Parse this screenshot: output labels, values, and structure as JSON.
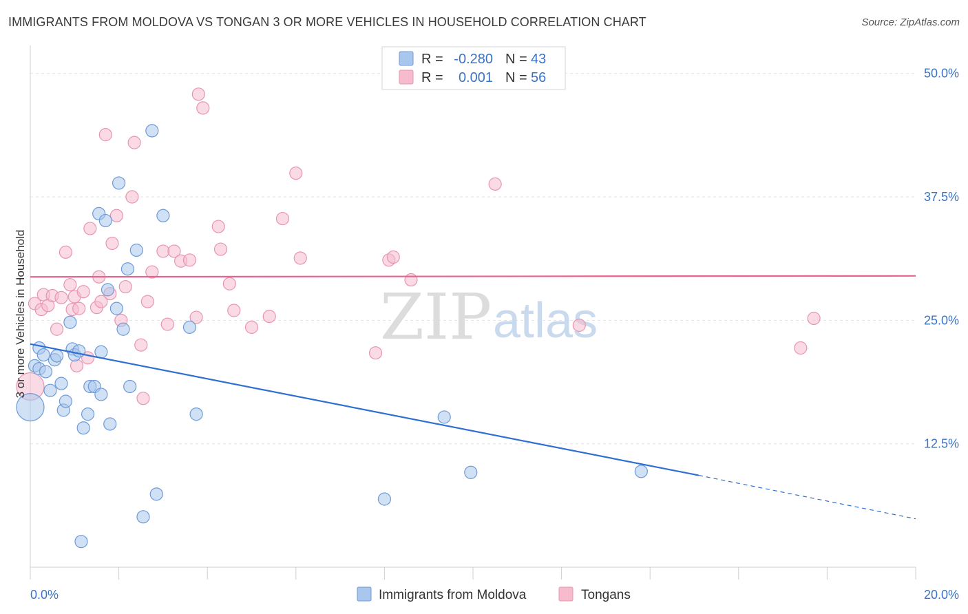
{
  "header": {
    "title": "IMMIGRANTS FROM MOLDOVA VS TONGAN 3 OR MORE VEHICLES IN HOUSEHOLD CORRELATION CHART",
    "source": "Source: ZipAtlas.com"
  },
  "watermark": {
    "zip": "ZIP",
    "atlas": "atlas"
  },
  "stats": [
    {
      "r_label": "R =",
      "r_value": "-0.280",
      "n_label": "N =",
      "n_value": "43"
    },
    {
      "r_label": "R =",
      "r_value": "0.001",
      "n_label": "N =",
      "n_value": "56"
    }
  ],
  "colors": {
    "blue_fill": "#a9c6ec",
    "blue_stroke": "#6d9ad6",
    "blue_line": "#2f6fd1",
    "pink_fill": "#f6bccd",
    "pink_stroke": "#e895b0",
    "pink_line": "#e8648c",
    "tick_text": "#3b73c4",
    "grid": "#e3e3e3"
  },
  "chart_data": {
    "type": "scatter",
    "title": "IMMIGRANTS FROM MOLDOVA VS TONGAN 3 OR MORE VEHICLES IN HOUSEHOLD CORRELATION CHART",
    "xlabel": "",
    "ylabel": "3 or more Vehicles in Household",
    "xlim": [
      0,
      20
    ],
    "ylim": [
      0,
      52
    ],
    "x_tick_labels": [
      {
        "value": 0,
        "label": "0.0%"
      },
      {
        "value": 20,
        "label": "20.0%"
      }
    ],
    "y_tick_labels": [
      {
        "value": 12.5,
        "label": "12.5%"
      },
      {
        "value": 25,
        "label": "25.0%"
      },
      {
        "value": 37.5,
        "label": "37.5%"
      },
      {
        "value": 50,
        "label": "50.0%"
      }
    ],
    "legend_position": "bottom-center",
    "series": [
      {
        "name": "Immigrants from Moldova",
        "color": "blue",
        "trend": {
          "x0": 0,
          "y0": 22.6,
          "x1": 15.1,
          "y1": 9.3,
          "dash_to_x": 20,
          "dash_to_y": 4.9
        },
        "points": [
          {
            "x": 0.0,
            "y": 16.2,
            "big": true
          },
          {
            "x": 0.1,
            "y": 20.4
          },
          {
            "x": 0.2,
            "y": 22.2
          },
          {
            "x": 0.3,
            "y": 21.5
          },
          {
            "x": 0.2,
            "y": 20.1
          },
          {
            "x": 0.35,
            "y": 19.8
          },
          {
            "x": 0.45,
            "y": 17.9
          },
          {
            "x": 0.55,
            "y": 21.0
          },
          {
            "x": 0.6,
            "y": 21.4
          },
          {
            "x": 0.7,
            "y": 18.6
          },
          {
            "x": 0.75,
            "y": 15.9
          },
          {
            "x": 0.8,
            "y": 16.8
          },
          {
            "x": 0.9,
            "y": 24.8
          },
          {
            "x": 0.95,
            "y": 22.1
          },
          {
            "x": 1.0,
            "y": 21.5
          },
          {
            "x": 1.1,
            "y": 21.9
          },
          {
            "x": 1.2,
            "y": 14.1
          },
          {
            "x": 1.3,
            "y": 15.5
          },
          {
            "x": 1.35,
            "y": 18.3
          },
          {
            "x": 1.45,
            "y": 18.3
          },
          {
            "x": 1.55,
            "y": 35.8
          },
          {
            "x": 1.6,
            "y": 17.5
          },
          {
            "x": 1.7,
            "y": 35.1
          },
          {
            "x": 1.75,
            "y": 28.1
          },
          {
            "x": 1.8,
            "y": 14.5
          },
          {
            "x": 1.95,
            "y": 26.2
          },
          {
            "x": 2.0,
            "y": 38.9
          },
          {
            "x": 2.1,
            "y": 24.1
          },
          {
            "x": 2.2,
            "y": 30.2
          },
          {
            "x": 2.25,
            "y": 18.3
          },
          {
            "x": 2.4,
            "y": 32.1
          },
          {
            "x": 2.55,
            "y": 5.1
          },
          {
            "x": 2.75,
            "y": 44.2
          },
          {
            "x": 2.85,
            "y": 7.4
          },
          {
            "x": 3.0,
            "y": 35.6
          },
          {
            "x": 3.6,
            "y": 24.3
          },
          {
            "x": 3.75,
            "y": 15.5
          },
          {
            "x": 1.15,
            "y": 2.6
          },
          {
            "x": 1.6,
            "y": 21.8
          },
          {
            "x": 8.0,
            "y": 6.9
          },
          {
            "x": 9.35,
            "y": 15.2
          },
          {
            "x": 9.95,
            "y": 9.6
          },
          {
            "x": 13.8,
            "y": 9.7
          }
        ]
      },
      {
        "name": "Tongans",
        "color": "pink",
        "trend": {
          "x0": 0,
          "y0": 29.4,
          "x1": 20,
          "y1": 29.5
        },
        "points": [
          {
            "x": 0.0,
            "y": 18.3,
            "big": true
          },
          {
            "x": 0.1,
            "y": 26.7
          },
          {
            "x": 0.25,
            "y": 26.1
          },
          {
            "x": 0.3,
            "y": 27.6
          },
          {
            "x": 0.4,
            "y": 26.5
          },
          {
            "x": 0.5,
            "y": 27.5
          },
          {
            "x": 0.6,
            "y": 24.1
          },
          {
            "x": 0.7,
            "y": 27.3
          },
          {
            "x": 0.8,
            "y": 31.9
          },
          {
            "x": 0.9,
            "y": 28.6
          },
          {
            "x": 0.95,
            "y": 26.1
          },
          {
            "x": 1.0,
            "y": 27.4
          },
          {
            "x": 1.05,
            "y": 20.4
          },
          {
            "x": 1.1,
            "y": 26.2
          },
          {
            "x": 1.2,
            "y": 27.9
          },
          {
            "x": 1.3,
            "y": 21.2
          },
          {
            "x": 1.35,
            "y": 34.3
          },
          {
            "x": 1.5,
            "y": 26.3
          },
          {
            "x": 1.55,
            "y": 29.4
          },
          {
            "x": 1.6,
            "y": 26.9
          },
          {
            "x": 1.7,
            "y": 43.8
          },
          {
            "x": 1.8,
            "y": 27.7
          },
          {
            "x": 1.85,
            "y": 32.8
          },
          {
            "x": 1.95,
            "y": 35.6
          },
          {
            "x": 2.05,
            "y": 25.0
          },
          {
            "x": 2.15,
            "y": 28.4
          },
          {
            "x": 2.3,
            "y": 37.5
          },
          {
            "x": 2.35,
            "y": 43.0
          },
          {
            "x": 2.5,
            "y": 22.5
          },
          {
            "x": 2.55,
            "y": 17.1
          },
          {
            "x": 2.65,
            "y": 26.9
          },
          {
            "x": 2.75,
            "y": 29.9
          },
          {
            "x": 3.0,
            "y": 32.0
          },
          {
            "x": 3.1,
            "y": 24.6
          },
          {
            "x": 3.25,
            "y": 32.0
          },
          {
            "x": 3.4,
            "y": 31.0
          },
          {
            "x": 3.6,
            "y": 31.1
          },
          {
            "x": 3.75,
            "y": 25.3
          },
          {
            "x": 3.8,
            "y": 47.9
          },
          {
            "x": 3.9,
            "y": 46.5
          },
          {
            "x": 4.25,
            "y": 34.5
          },
          {
            "x": 4.3,
            "y": 32.2
          },
          {
            "x": 4.5,
            "y": 28.7
          },
          {
            "x": 4.6,
            "y": 26.0
          },
          {
            "x": 5.0,
            "y": 24.3
          },
          {
            "x": 5.4,
            "y": 25.4
          },
          {
            "x": 5.7,
            "y": 35.3
          },
          {
            "x": 6.0,
            "y": 39.9
          },
          {
            "x": 6.1,
            "y": 31.3
          },
          {
            "x": 7.8,
            "y": 21.7
          },
          {
            "x": 8.1,
            "y": 31.1
          },
          {
            "x": 8.2,
            "y": 31.4
          },
          {
            "x": 8.6,
            "y": 29.1
          },
          {
            "x": 10.5,
            "y": 38.8
          },
          {
            "x": 12.4,
            "y": 24.5
          },
          {
            "x": 17.4,
            "y": 22.2
          },
          {
            "x": 17.7,
            "y": 25.2
          }
        ]
      }
    ]
  }
}
